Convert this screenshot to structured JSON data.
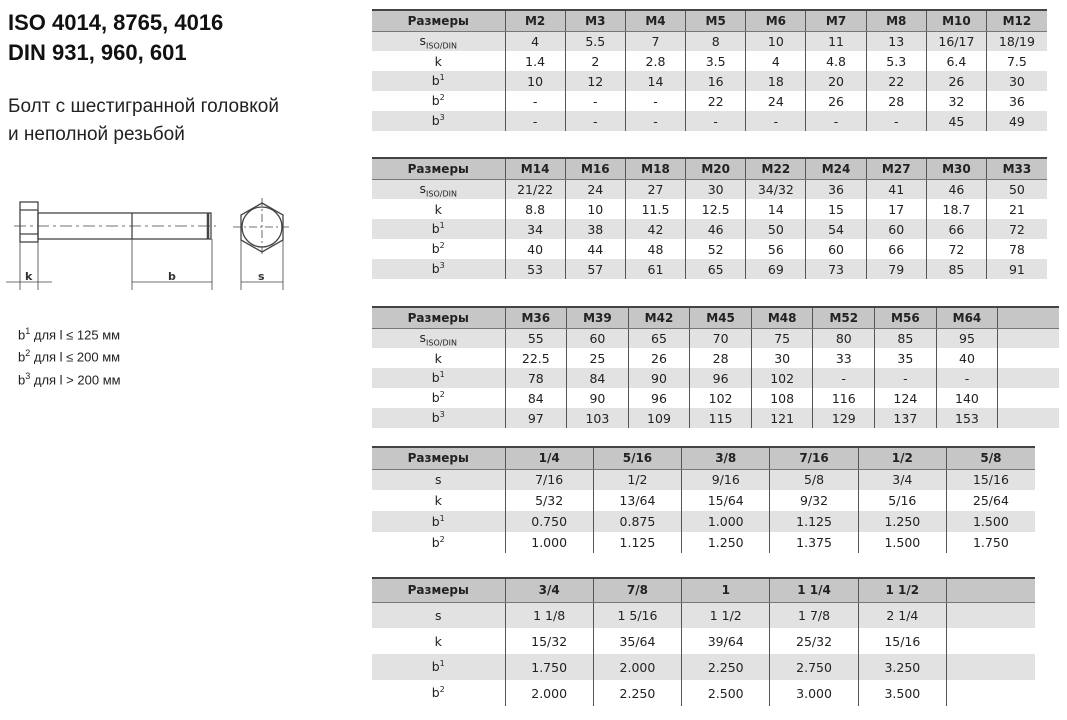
{
  "title": {
    "line1": "ISO 4014, 8765, 4016",
    "line2": "DIN 931, 960, 601"
  },
  "subtitle": {
    "line1": "Болт с шестигранной головкой",
    "line2": "и неполной резьбой"
  },
  "drawing": {
    "labels": {
      "k": "k",
      "b": "b",
      "s": "s"
    }
  },
  "notes": [
    {
      "sup": "1",
      "text": " для l ≤ 125 мм"
    },
    {
      "sup": "2",
      "text": " для l ≤ 200 мм"
    },
    {
      "sup": "3",
      "text": " для l > 200 мм"
    }
  ],
  "tables": [
    {
      "header": [
        "Размеры",
        "M2",
        "M3",
        "M4",
        "M5",
        "M6",
        "M7",
        "M8",
        "M10",
        "M12"
      ],
      "rows": [
        {
          "label": {
            "base": "s",
            "sub": "ISO/DIN"
          },
          "values": [
            "4",
            "5.5",
            "7",
            "8",
            "10",
            "11",
            "13",
            "16/17",
            "18/19"
          ]
        },
        {
          "label": {
            "base": "k"
          },
          "values": [
            "1.4",
            "2",
            "2.8",
            "3.5",
            "4",
            "4.8",
            "5.3",
            "6.4",
            "7.5"
          ]
        },
        {
          "label": {
            "base": "b",
            "sup": "1"
          },
          "values": [
            "10",
            "12",
            "14",
            "16",
            "18",
            "20",
            "22",
            "26",
            "30"
          ]
        },
        {
          "label": {
            "base": "b",
            "sup": "2"
          },
          "values": [
            "-",
            "-",
            "-",
            "22",
            "24",
            "26",
            "28",
            "32",
            "36"
          ]
        },
        {
          "label": {
            "base": "b",
            "sup": "3"
          },
          "values": [
            "-",
            "-",
            "-",
            "-",
            "-",
            "-",
            "-",
            "45",
            "49"
          ]
        }
      ]
    },
    {
      "header": [
        "Размеры",
        "M14",
        "M16",
        "M18",
        "M20",
        "M22",
        "M24",
        "M27",
        "M30",
        "M33"
      ],
      "rows": [
        {
          "label": {
            "base": "s",
            "sub": "ISO/DIN"
          },
          "values": [
            "21/22",
            "24",
            "27",
            "30",
            "34/32",
            "36",
            "41",
            "46",
            "50"
          ]
        },
        {
          "label": {
            "base": "k"
          },
          "values": [
            "8.8",
            "10",
            "11.5",
            "12.5",
            "14",
            "15",
            "17",
            "18.7",
            "21"
          ]
        },
        {
          "label": {
            "base": "b",
            "sup": "1"
          },
          "values": [
            "34",
            "38",
            "42",
            "46",
            "50",
            "54",
            "60",
            "66",
            "72"
          ]
        },
        {
          "label": {
            "base": "b",
            "sup": "2"
          },
          "values": [
            "40",
            "44",
            "48",
            "52",
            "56",
            "60",
            "66",
            "72",
            "78"
          ]
        },
        {
          "label": {
            "base": "b",
            "sup": "3"
          },
          "values": [
            "53",
            "57",
            "61",
            "65",
            "69",
            "73",
            "79",
            "85",
            "91"
          ]
        }
      ]
    },
    {
      "header": [
        "Размеры",
        "M36",
        "M39",
        "M42",
        "M45",
        "M48",
        "M52",
        "M56",
        "M64",
        ""
      ],
      "rows": [
        {
          "label": {
            "base": "s",
            "sub": "ISO/DIN"
          },
          "values": [
            "55",
            "60",
            "65",
            "70",
            "75",
            "80",
            "85",
            "95",
            ""
          ]
        },
        {
          "label": {
            "base": "k"
          },
          "values": [
            "22.5",
            "25",
            "26",
            "28",
            "30",
            "33",
            "35",
            "40",
            ""
          ]
        },
        {
          "label": {
            "base": "b",
            "sup": "1"
          },
          "values": [
            "78",
            "84",
            "90",
            "96",
            "102",
            "-",
            "-",
            "-",
            ""
          ]
        },
        {
          "label": {
            "base": "b",
            "sup": "2"
          },
          "values": [
            "84",
            "90",
            "96",
            "102",
            "108",
            "116",
            "124",
            "140",
            ""
          ]
        },
        {
          "label": {
            "base": "b",
            "sup": "3"
          },
          "values": [
            "97",
            "103",
            "109",
            "115",
            "121",
            "129",
            "137",
            "153",
            ""
          ]
        }
      ]
    },
    {
      "header": [
        "Размеры",
        "1/4",
        "5/16",
        "3/8",
        "7/16",
        "1/2",
        "5/8"
      ],
      "rows": [
        {
          "label": {
            "base": "s"
          },
          "values": [
            "7/16",
            "1/2",
            "9/16",
            "5/8",
            "3/4",
            "15/16"
          ]
        },
        {
          "label": {
            "base": "k"
          },
          "values": [
            "5/32",
            "13/64",
            "15/64",
            "9/32",
            "5/16",
            "25/64"
          ]
        },
        {
          "label": {
            "base": "b",
            "sup": "1"
          },
          "values": [
            "0.750",
            "0.875",
            "1.000",
            "1.125",
            "1.250",
            "1.500"
          ]
        },
        {
          "label": {
            "base": "b",
            "sup": "2"
          },
          "values": [
            "1.000",
            "1.125",
            "1.250",
            "1.375",
            "1.500",
            "1.750"
          ]
        }
      ]
    },
    {
      "header": [
        "Размеры",
        "3/4",
        "7/8",
        "1",
        "1 1/4",
        "1 1/2",
        ""
      ],
      "rows": [
        {
          "label": {
            "base": "s"
          },
          "values": [
            "1 1/8",
            "1 5/16",
            "1 1/2",
            "1 7/8",
            "2 1/4",
            ""
          ]
        },
        {
          "label": {
            "base": "k"
          },
          "values": [
            "15/32",
            "35/64",
            "39/64",
            "25/32",
            "15/16",
            ""
          ]
        },
        {
          "label": {
            "base": "b",
            "sup": "1"
          },
          "values": [
            "1.750",
            "2.000",
            "2.250",
            "2.750",
            "3.250",
            ""
          ]
        },
        {
          "label": {
            "base": "b",
            "sup": "2"
          },
          "values": [
            "2.000",
            "2.250",
            "2.500",
            "3.000",
            "3.500",
            ""
          ]
        }
      ]
    }
  ]
}
